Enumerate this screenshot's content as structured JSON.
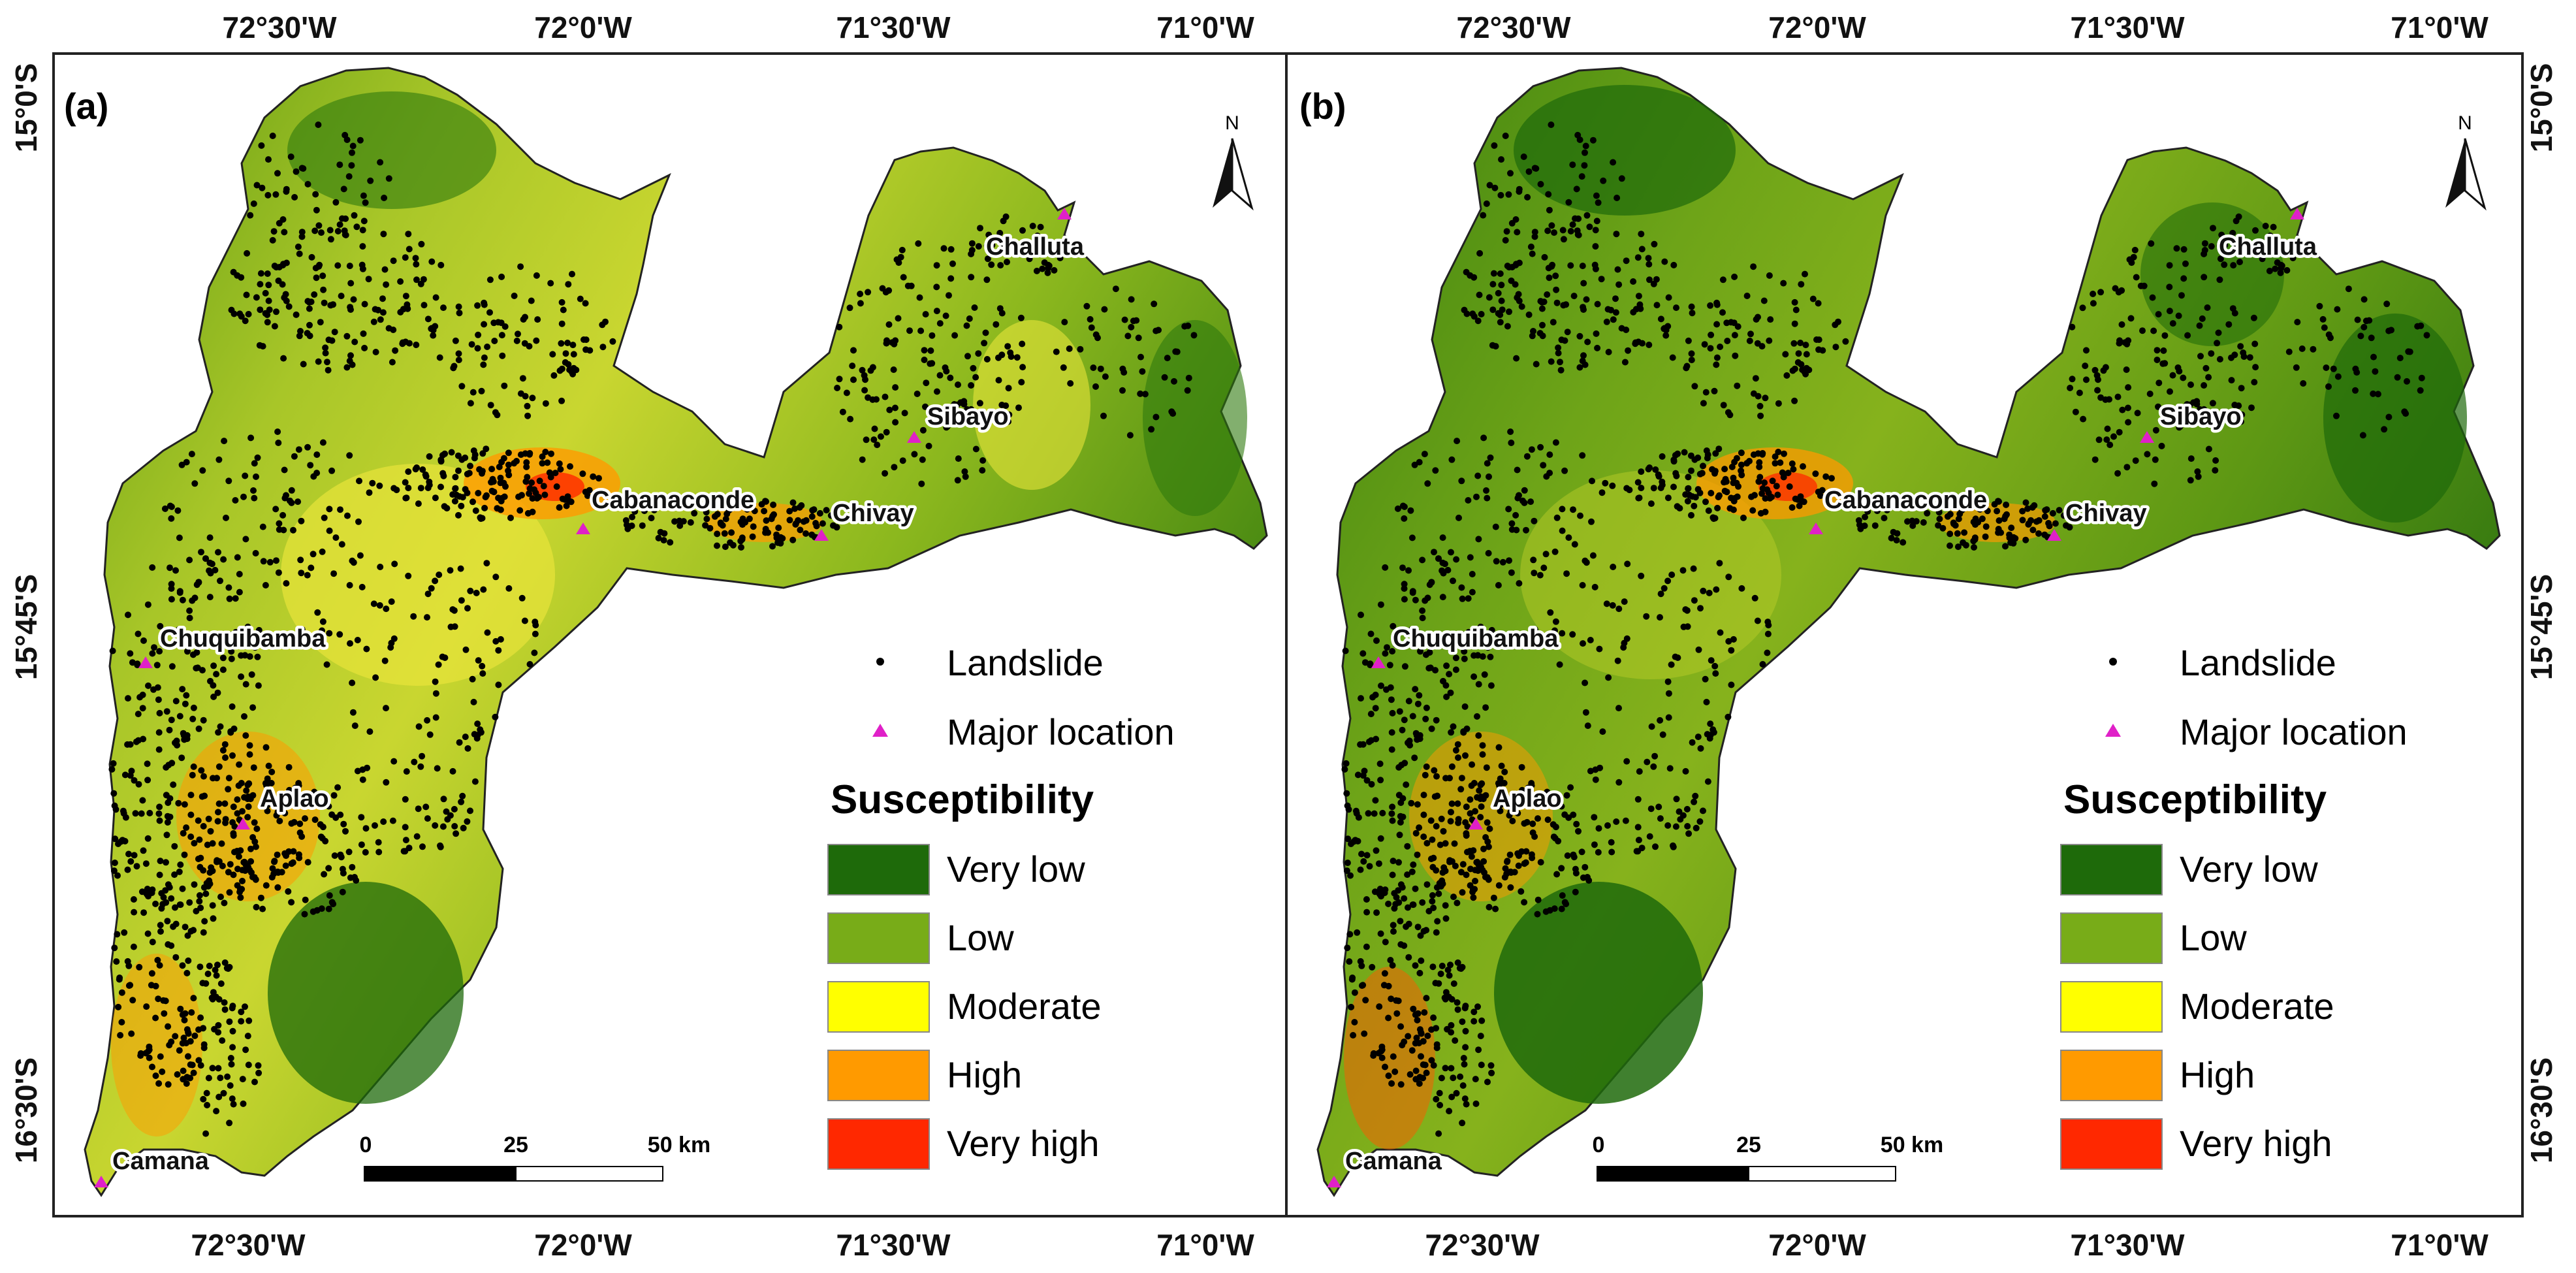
{
  "colors": {
    "very_low": "#1e6a0a",
    "low": "#78ac18",
    "moderate": "#ffff00",
    "high": "#ff9a00",
    "very_high": "#ff2800",
    "landslide": "#000000",
    "major_location": "#e020c8"
  },
  "axes": {
    "lon_ticks": [
      "72°30'W",
      "72°0'W",
      "71°30'W",
      "71°0'W"
    ],
    "lat_ticks": [
      "15°0'S",
      "15°45'S",
      "16°30'S"
    ]
  },
  "panels": [
    {
      "label": "(a)",
      "places": [
        {
          "name": "Challuta",
          "lon": -71.15,
          "lat": -15.13
        },
        {
          "name": "Sibayo",
          "lon": -71.46,
          "lat": -15.49
        },
        {
          "name": "Chivay",
          "lon": -71.6,
          "lat": -15.64
        },
        {
          "name": "Cabanaconde",
          "lon": -71.97,
          "lat": -15.62
        },
        {
          "name": "Chuquibamba",
          "lon": -72.65,
          "lat": -15.84
        },
        {
          "name": "Aplao",
          "lon": -72.51,
          "lat": -16.08
        },
        {
          "name": "Camana",
          "lon": -72.71,
          "lat": -16.62
        }
      ],
      "north_label": "N",
      "scale": {
        "labels": [
          "0",
          "25",
          "50 km"
        ]
      },
      "legend": {
        "landslide_label": "Landslide",
        "major_location_label": "Major location",
        "title": "Susceptibility",
        "classes": [
          "Very low",
          "Low",
          "Moderate",
          "High",
          "Very high"
        ]
      }
    },
    {
      "label": "(b)",
      "places": [
        {
          "name": "Challuta",
          "lon": -71.15,
          "lat": -15.13
        },
        {
          "name": "Sibayo",
          "lon": -71.46,
          "lat": -15.49
        },
        {
          "name": "Chivay",
          "lon": -71.6,
          "lat": -15.64
        },
        {
          "name": "Cabanaconde",
          "lon": -71.97,
          "lat": -15.62
        },
        {
          "name": "Chuquibamba",
          "lon": -72.65,
          "lat": -15.84
        },
        {
          "name": "Aplao",
          "lon": -72.51,
          "lat": -16.08
        },
        {
          "name": "Camana",
          "lon": -72.71,
          "lat": -16.62
        }
      ],
      "north_label": "N",
      "scale": {
        "labels": [
          "0",
          "25",
          "50 km"
        ]
      },
      "legend": {
        "landslide_label": "Landslide",
        "major_location_label": "Major location",
        "title": "Susceptibility",
        "classes": [
          "Very low",
          "Low",
          "Moderate",
          "High",
          "Very high"
        ]
      }
    }
  ]
}
